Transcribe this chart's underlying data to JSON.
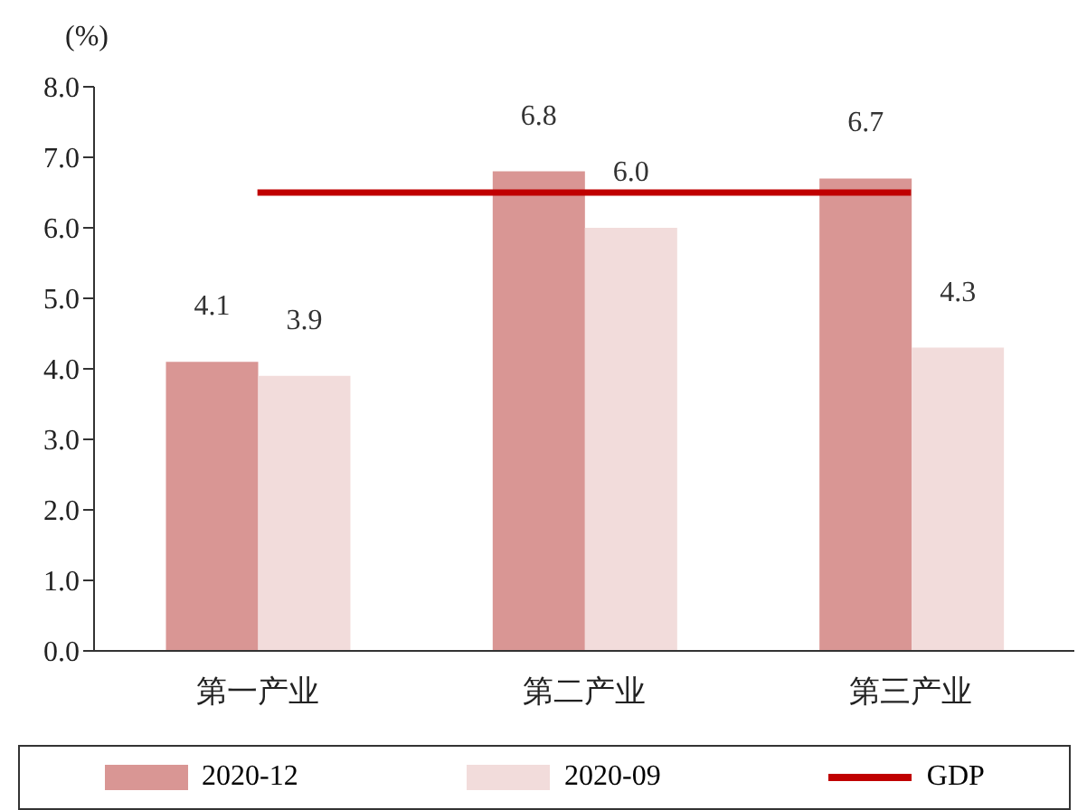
{
  "chart_data": {
    "type": "bar",
    "ylabel": "(%)",
    "categories": [
      "第一产业",
      "第二产业",
      "第三产业"
    ],
    "series": [
      {
        "name": "2020-12",
        "color": "#d99694",
        "values": [
          4.1,
          6.8,
          6.7
        ],
        "value_labels": [
          "4.1",
          "6.8",
          "6.7"
        ]
      },
      {
        "name": "2020-09",
        "color": "#f2dcdb",
        "values": [
          3.9,
          6.0,
          4.3
        ],
        "value_labels": [
          "3.9",
          "6.0",
          "4.3"
        ]
      },
      {
        "name": "GDP",
        "type": "line",
        "color": "#c00000",
        "values": [
          6.5,
          6.5,
          6.5
        ],
        "marker": "none",
        "line_style": "solid"
      }
    ],
    "ylim": [
      0,
      8
    ],
    "yticks": [
      {
        "value": 0,
        "label": "0.0"
      },
      {
        "value": 1,
        "label": "1.0"
      },
      {
        "value": 2,
        "label": "2.0"
      },
      {
        "value": 3,
        "label": "3.0"
      },
      {
        "value": 4,
        "label": "4.0"
      },
      {
        "value": 5,
        "label": "5.0"
      },
      {
        "value": 6,
        "label": "6.0"
      },
      {
        "value": 7,
        "label": "7.0"
      },
      {
        "value": 8,
        "label": "8.0"
      }
    ],
    "grid": false,
    "legend": "bottom"
  }
}
